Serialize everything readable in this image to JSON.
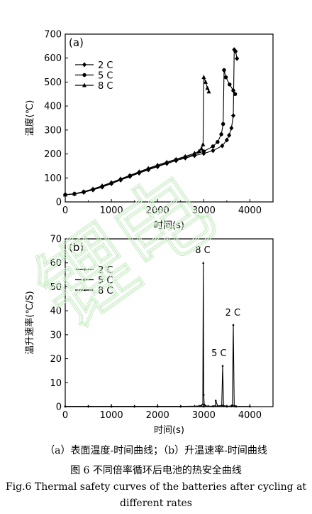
{
  "chart_data": [
    {
      "type": "line",
      "panel_label": "(a)",
      "xlabel": "时间(s)",
      "ylabel": "温度(℃)",
      "xlim": [
        0,
        4500
      ],
      "ylim": [
        0,
        700
      ],
      "xticks": [
        0,
        1000,
        2000,
        3000,
        4000
      ],
      "yticks": [
        0,
        100,
        200,
        300,
        400,
        500,
        600,
        700
      ],
      "legend": [
        "2 C",
        "5 C",
        "8 C"
      ],
      "legend_position": "top-left",
      "series": [
        {
          "name": "2 C",
          "marker": "diamond",
          "x": [
            0,
            200,
            400,
            600,
            800,
            1000,
            1200,
            1400,
            1600,
            1800,
            2000,
            2200,
            2400,
            2600,
            2800,
            3000,
            3200,
            3400,
            3500,
            3550,
            3600,
            3640,
            3660,
            3690,
            3720
          ],
          "y": [
            30,
            33,
            40,
            50,
            62,
            76,
            91,
            106,
            120,
            134,
            147,
            160,
            172,
            183,
            193,
            202,
            214,
            234,
            258,
            278,
            308,
            360,
            635,
            628,
            598
          ]
        },
        {
          "name": "5 C",
          "marker": "circle",
          "x": [
            0,
            200,
            400,
            600,
            800,
            1000,
            1200,
            1400,
            1600,
            1800,
            2000,
            2200,
            2400,
            2600,
            2800,
            3000,
            3200,
            3300,
            3380,
            3420,
            3440,
            3480,
            3560,
            3640,
            3680
          ],
          "y": [
            30,
            34,
            42,
            52,
            65,
            79,
            94,
            109,
            123,
            137,
            150,
            163,
            176,
            187,
            198,
            211,
            232,
            250,
            282,
            325,
            550,
            520,
            490,
            465,
            450
          ]
        },
        {
          "name": "8 C",
          "marker": "triangle",
          "x": [
            0,
            200,
            400,
            600,
            800,
            1000,
            1200,
            1400,
            1600,
            1800,
            2000,
            2200,
            2400,
            2600,
            2800,
            2900,
            2950,
            2985,
            3000,
            3040,
            3080,
            3110
          ],
          "y": [
            30,
            34,
            43,
            54,
            67,
            81,
            96,
            111,
            126,
            140,
            154,
            166,
            178,
            190,
            203,
            212,
            222,
            240,
            520,
            500,
            475,
            460
          ]
        }
      ]
    },
    {
      "type": "line",
      "panel_label": "(b)",
      "xlabel": "时间(s)",
      "ylabel": "温升速率(℃/S)",
      "xlim": [
        0,
        4500
      ],
      "ylim": [
        0,
        70
      ],
      "xticks": [
        0,
        1000,
        2000,
        3000,
        4000
      ],
      "yticks": [
        0,
        10,
        20,
        30,
        40,
        50,
        60,
        70
      ],
      "legend": [
        "2 C",
        "5 C",
        "8 C"
      ],
      "legend_position": "top-left",
      "annotations": [
        {
          "text": "8 C",
          "x": 2980,
          "y": 64
        },
        {
          "text": "5 C",
          "x": 3330,
          "y": 21
        },
        {
          "text": "2 C",
          "x": 3630,
          "y": 38
        }
      ],
      "series": [
        {
          "name": "2 C",
          "marker": "diamond",
          "x": [
            0,
            500,
            1000,
            1500,
            2000,
            2500,
            3000,
            3500,
            3600,
            3620,
            3640,
            3660,
            3700,
            4000
          ],
          "y": [
            0.1,
            0.1,
            0.1,
            0.1,
            0.1,
            0.1,
            0.1,
            0.1,
            0.3,
            0.5,
            34,
            0.3,
            0.1,
            0.1
          ]
        },
        {
          "name": "5 C",
          "marker": "circle",
          "x": [
            0,
            500,
            1000,
            1500,
            2000,
            2500,
            3000,
            3200,
            3250,
            3260,
            3300,
            3390,
            3410,
            3430,
            3500,
            3700
          ],
          "y": [
            0.1,
            0.1,
            0.1,
            0.1,
            0.1,
            0.1,
            0.1,
            0.2,
            0.3,
            2.5,
            0.3,
            0.5,
            17,
            0.4,
            0.2,
            0.1
          ]
        },
        {
          "name": "8 C",
          "marker": "triangle",
          "x": [
            0,
            500,
            1000,
            1500,
            2000,
            2500,
            2800,
            2900,
            2950,
            2980,
            2990,
            3000,
            3010,
            3030,
            3100,
            3200
          ],
          "y": [
            0.1,
            0.1,
            0.1,
            0.1,
            0.1,
            0.1,
            0.2,
            0.3,
            0.5,
            1,
            60,
            5,
            1,
            0.4,
            0.2,
            0.1
          ]
        }
      ]
    }
  ],
  "captions": {
    "sub": "（a）表面温度-时间曲线；（b）升温速率-时间曲线",
    "zh": "图 6  不同倍率循环后电池的热安全曲线",
    "en_line1": "Fig.6 Thermal safety curves of the batteries after cycling at",
    "en_line2": "different rates"
  },
  "watermark": "锂电"
}
